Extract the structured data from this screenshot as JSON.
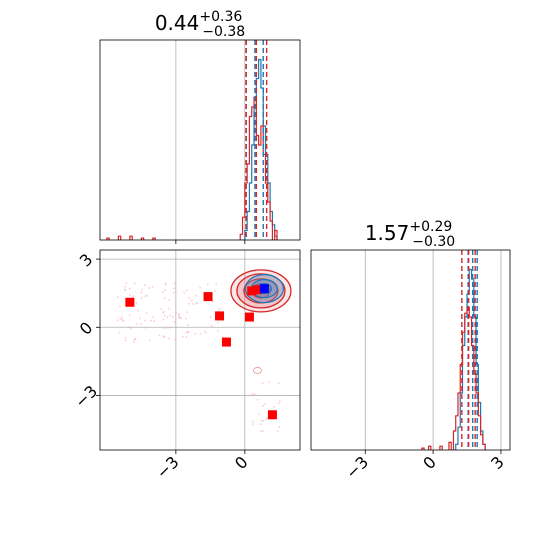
{
  "chart_data": [
    {
      "type": "histogram",
      "panel": "top-left marginal",
      "title": {
        "value": "0.44",
        "upper": "+0.36",
        "lower": "−0.38"
      },
      "xlim": [
        -6.3,
        2.4
      ],
      "grid": true,
      "series": [
        {
          "name": "",
          "color": "#1f77b4",
          "bins": [
            [
              -0.1,
              0.0
            ],
            [
              0.0,
              0.05
            ],
            [
              0.1,
              0.15
            ],
            [
              0.2,
              0.3
            ],
            [
              0.3,
              0.5
            ],
            [
              0.4,
              0.7
            ],
            [
              0.5,
              0.85
            ],
            [
              0.6,
              0.95
            ],
            [
              0.7,
              0.8
            ],
            [
              0.8,
              0.6
            ],
            [
              0.9,
              0.45
            ],
            [
              1.0,
              0.3
            ],
            [
              1.1,
              0.15
            ],
            [
              1.2,
              0.08
            ],
            [
              1.3,
              0.02
            ]
          ],
          "quantile_lines": [
            0.06,
            0.44,
            0.8
          ]
        },
        {
          "name": "",
          "color": "#d62728",
          "bins": [
            [
              -6.0,
              0.01
            ],
            [
              -5.5,
              0.02
            ],
            [
              -5.0,
              0.02
            ],
            [
              -4.5,
              0.01
            ],
            [
              -4.0,
              0.01
            ],
            [
              -0.2,
              0.03
            ],
            [
              -0.1,
              0.12
            ],
            [
              0.0,
              0.3
            ],
            [
              0.1,
              0.4
            ],
            [
              0.2,
              0.65
            ],
            [
              0.3,
              0.7
            ],
            [
              0.4,
              0.75
            ],
            [
              0.5,
              0.55
            ],
            [
              0.6,
              0.5
            ],
            [
              0.7,
              0.6
            ],
            [
              0.8,
              0.45
            ],
            [
              0.9,
              0.3
            ],
            [
              1.0,
              0.2
            ],
            [
              1.1,
              0.1
            ],
            [
              1.3,
              0.05
            ]
          ],
          "quantile_lines": [
            0.05,
            0.5,
            0.95
          ]
        }
      ]
    },
    {
      "type": "contour-scatter",
      "panel": "bottom-left joint",
      "xlim": [
        -6.3,
        2.4
      ],
      "ylim": [
        -5.4,
        3.4
      ],
      "xticks": [
        "−3",
        "0"
      ],
      "yticks": [
        "3",
        "0",
        "−3"
      ],
      "grid": true,
      "markers": [
        {
          "x": -5.0,
          "y": 1.1,
          "color": "#ff0000"
        },
        {
          "x": -1.6,
          "y": 1.35,
          "color": "#ff0000"
        },
        {
          "x": -1.1,
          "y": 0.5,
          "color": "#ff0000"
        },
        {
          "x": -0.8,
          "y": -0.65,
          "color": "#ff0000"
        },
        {
          "x": 0.2,
          "y": 0.45,
          "color": "#ff0000"
        },
        {
          "x": 0.3,
          "y": 1.6,
          "color": "#ff0000"
        },
        {
          "x": 0.55,
          "y": 1.65,
          "color": "#ff0000"
        },
        {
          "x": 1.2,
          "y": -3.85,
          "color": "#ff0000"
        },
        {
          "x": 0.85,
          "y": 1.7,
          "color": "#0000ff"
        }
      ],
      "contour_centers": [
        {
          "x": 0.7,
          "y": 1.6,
          "color": "#d62728"
        },
        {
          "x": 0.85,
          "y": 1.7,
          "color": "#1f77b4"
        }
      ]
    },
    {
      "type": "histogram",
      "panel": "bottom-right marginal",
      "title": {
        "value": "1.57",
        "upper": "+0.29",
        "lower": "−0.30"
      },
      "xlim": [
        -5.4,
        3.4
      ],
      "xticks": [
        "−3",
        "0",
        "3"
      ],
      "grid": true,
      "series": [
        {
          "name": "",
          "color": "#1f77b4",
          "bins": [
            [
              1.0,
              0.03
            ],
            [
              1.1,
              0.12
            ],
            [
              1.2,
              0.3
            ],
            [
              1.3,
              0.55
            ],
            [
              1.4,
              0.7
            ],
            [
              1.5,
              0.82
            ],
            [
              1.6,
              0.95
            ],
            [
              1.7,
              0.9
            ],
            [
              1.8,
              0.7
            ],
            [
              1.9,
              0.45
            ],
            [
              2.0,
              0.25
            ],
            [
              2.1,
              0.1
            ],
            [
              2.2,
              0.03
            ]
          ],
          "quantile_lines": [
            1.55,
            1.75,
            1.95
          ]
        },
        {
          "name": "",
          "color": "#d62728",
          "bins": [
            [
              -0.5,
              0.01
            ],
            [
              -0.2,
              0.02
            ],
            [
              0.3,
              0.02
            ],
            [
              0.7,
              0.04
            ],
            [
              0.9,
              0.1
            ],
            [
              1.0,
              0.18
            ],
            [
              1.1,
              0.3
            ],
            [
              1.2,
              0.45
            ],
            [
              1.3,
              0.62
            ],
            [
              1.4,
              0.72
            ],
            [
              1.5,
              0.75
            ],
            [
              1.6,
              0.7
            ],
            [
              1.7,
              0.55
            ],
            [
              1.8,
              0.4
            ],
            [
              1.9,
              0.3
            ],
            [
              2.0,
              0.18
            ],
            [
              2.1,
              0.08
            ],
            [
              2.2,
              0.03
            ]
          ],
          "quantile_lines": [
            1.27,
            1.57,
            1.86
          ]
        }
      ]
    }
  ]
}
